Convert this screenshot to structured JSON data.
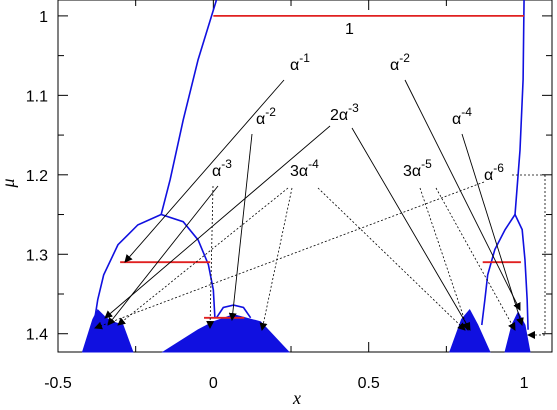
{
  "chart_data": {
    "type": "bifurcation",
    "xlabel": "x",
    "ylabel": "μ",
    "xlim": [
      -0.5,
      1.09
    ],
    "ylim": [
      0.98,
      1.423
    ],
    "y_inverted": true,
    "xticks": [
      -0.5,
      0,
      0.5,
      1
    ],
    "yticks": [
      1,
      1.1,
      1.2,
      1.3,
      1.4
    ],
    "xminor": [
      -0.25,
      0.25,
      0.75
    ],
    "yminor": [
      1.05,
      1.15,
      1.25,
      1.35
    ],
    "grid": false,
    "curve_color": "#1010e0",
    "level_color": "#e02020",
    "curves": [
      {
        "x": [
          -0.382,
          -0.372,
          -0.353,
          -0.307,
          -0.243,
          -0.168,
          -0.097,
          -0.049,
          -0.016,
          0,
          0.005
        ],
        "y": [
          1.382,
          1.357,
          1.326,
          1.288,
          1.263,
          1.25,
          1.259,
          1.282,
          1.313,
          1.345,
          1.38
        ]
      },
      {
        "x": [
          -0.168,
          -0.139,
          -0.097,
          -0.049,
          0.01
        ],
        "y": [
          1.25,
          1.206,
          1.131,
          1.055,
          0.98
        ]
      },
      {
        "x": [
          0.01,
          0.032,
          0.065,
          0.097,
          0.12
        ],
        "y": [
          1.38,
          1.367,
          1.364,
          1.367,
          1.38
        ]
      },
      {
        "x": [
          0.864,
          0.874,
          0.883,
          0.906,
          0.939,
          0.971,
          0.994,
          1.003,
          1.01,
          1.013
        ],
        "y": [
          1.389,
          1.357,
          1.326,
          1.294,
          1.269,
          1.25,
          1.269,
          1.307,
          1.357,
          1.395
        ]
      },
      {
        "x": [
          0.971,
          0.987,
          0.997,
          1.0
        ],
        "y": [
          1.25,
          1.169,
          1.08,
          0.98
        ]
      }
    ],
    "bands": [
      {
        "x": [
          -0.421,
          -0.388,
          -0.372,
          -0.346,
          -0.324,
          -0.291,
          -0.259
        ],
        "y": [
          1.423,
          1.382,
          1.37,
          1.38,
          1.385,
          1.389,
          1.423
        ]
      },
      {
        "x": [
          -0.162,
          -0.049,
          0,
          0.065,
          0.152,
          0.243
        ],
        "y": [
          1.423,
          1.395,
          1.385,
          1.376,
          1.385,
          1.423
        ]
      },
      {
        "x": [
          0.761,
          0.799,
          0.825,
          0.851,
          0.89
        ],
        "y": [
          1.423,
          1.382,
          1.37,
          1.389,
          1.423
        ]
      },
      {
        "x": [
          0.939,
          0.961,
          0.981,
          1.003,
          1.019
        ],
        "y": [
          1.423,
          1.389,
          1.373,
          1.389,
          1.423
        ]
      }
    ],
    "levels": [
      {
        "x": [
          0,
          1
        ],
        "y": [
          1,
          1
        ]
      },
      {
        "x": [
          -0.3,
          -0.01
        ],
        "y": [
          1.31,
          1.31
        ]
      },
      {
        "x": [
          0.867,
          0.99
        ],
        "y": [
          1.31,
          1.31
        ]
      },
      {
        "x": [
          -0.03,
          0.1
        ],
        "y": [
          1.38,
          1.38
        ]
      }
    ],
    "annotations": [
      {
        "text": "1"
      },
      {
        "text": "α",
        "sup": "-1"
      },
      {
        "text": "α",
        "sup": "-2"
      },
      {
        "text": "2α",
        "sup": "-3"
      },
      {
        "text": "α",
        "sup": "-3"
      },
      {
        "text": "3α",
        "sup": "-4"
      },
      {
        "text": "α",
        "sup": "-2"
      },
      {
        "text": "α",
        "sup": "-4"
      },
      {
        "text": "α",
        "sup": "-6"
      },
      {
        "text": "3α",
        "sup": "-5"
      }
    ]
  }
}
